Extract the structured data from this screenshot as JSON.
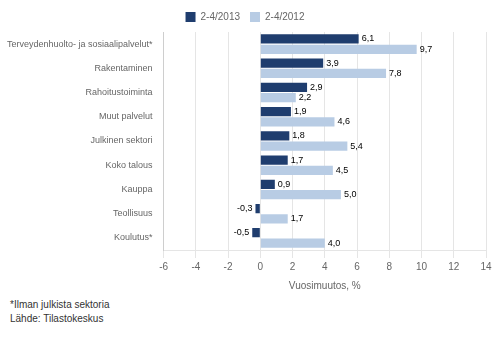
{
  "chart_data": {
    "type": "bar",
    "orientation": "horizontal",
    "categories": [
      "Terveydenhuolto- ja sosiaalipalvelut*",
      "Rakentaminen",
      "Rahoitustoiminta",
      "Muut palvelut",
      "Julkinen sektori",
      "Koko talous",
      "Kauppa",
      "Teollisuus",
      "Koulutus*"
    ],
    "series": [
      {
        "name": "2-4/2013",
        "color": "#1F3D6E",
        "values": [
          6.1,
          3.9,
          2.9,
          1.9,
          1.8,
          1.7,
          0.9,
          -0.3,
          -0.5
        ],
        "value_labels": [
          "6,1",
          "3,9",
          "2,9",
          "1,9",
          "1,8",
          "1,7",
          "0,9",
          "-0,3",
          "-0,5"
        ]
      },
      {
        "name": "2-4/2012",
        "color": "#B8CCE4",
        "values": [
          9.7,
          7.8,
          2.2,
          4.6,
          5.4,
          4.5,
          5.0,
          1.7,
          4.0
        ],
        "value_labels": [
          "9,7",
          "7,8",
          "2,2",
          "4,6",
          "5,4",
          "4,5",
          "5,0",
          "1,7",
          "4,0"
        ]
      }
    ],
    "x_label": "Vuosimuutos, %",
    "xlim": [
      -6,
      14
    ],
    "xticks": [
      -6,
      -4,
      -2,
      0,
      2,
      4,
      6,
      8,
      10,
      12,
      14
    ],
    "grid": true,
    "legend": "top",
    "data_labels": true,
    "annotations": [
      "*Ilman julkista sektoria",
      "Lähde: Tilastokeskus"
    ]
  }
}
